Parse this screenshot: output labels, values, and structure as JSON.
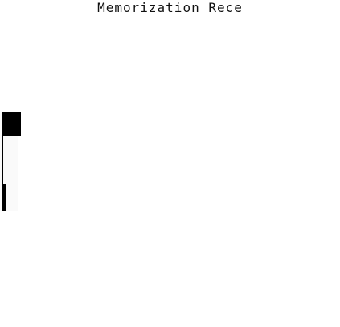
{
  "chart_data": {
    "type": "bar",
    "orientation": "horizontal",
    "title": "Memorization Rece",
    "xlabel": "",
    "ylabel": "",
    "categories": [
      "",
      "",
      ""
    ],
    "series": [
      {
        "values": [
          0.06,
          0.005,
          0.015
        ]
      }
    ],
    "xlim": [
      0,
      1
    ],
    "grid": false,
    "legend": "none",
    "colors": {
      "bar": "#000000",
      "row_bg": "#fafafa",
      "text": "#111111",
      "background": "#ffffff"
    }
  }
}
